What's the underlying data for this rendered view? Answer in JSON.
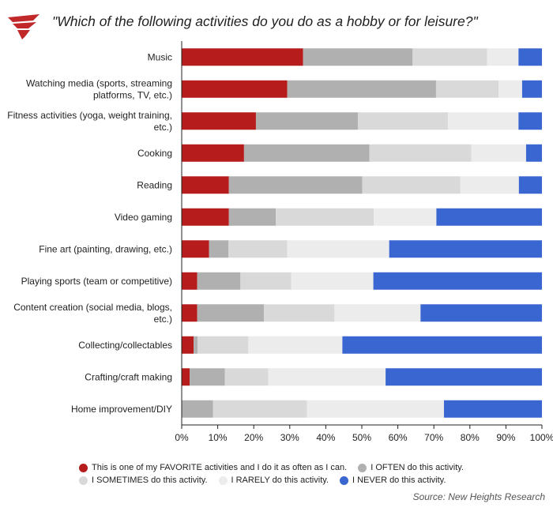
{
  "title": "\"Which of the following activities do you do as a hobby or for leisure?\"",
  "source": "Source: New Heights Research",
  "logo_icon": "red-wing-logo-icon",
  "colors": {
    "favorite": "#b71c1c",
    "often": "#b0b0b0",
    "sometimes": "#d9d9d9",
    "rarely": "#ececec",
    "never": "#3a66d1",
    "axis": "#222222",
    "grid": "#e6e6e6",
    "logo": "#c0282a"
  },
  "legend": [
    {
      "key": "favorite",
      "label": "This is one of my FAVORITE activities and I do it as often as I can."
    },
    {
      "key": "often",
      "label": "I OFTEN do this activity."
    },
    {
      "key": "sometimes",
      "label": "I SOMETIMES do this activity."
    },
    {
      "key": "rarely",
      "label": "I RARELY do this activity."
    },
    {
      "key": "never",
      "label": "I NEVER do this activity."
    }
  ],
  "chart_data": {
    "type": "bar",
    "orientation": "horizontal",
    "stacked": true,
    "title": "\"Which of the following activities do you do as a hobby or for leisure?\"",
    "xlim": [
      0,
      100
    ],
    "x_ticks": [
      "0%",
      "10%",
      "20%",
      "30%",
      "40%",
      "50%",
      "60%",
      "70%",
      "80%",
      "90%",
      "100%"
    ],
    "grid": false,
    "legend_position": "bottom",
    "categories": [
      [
        "Music"
      ],
      [
        "Watching media (sports, streaming",
        "platforms, TV, etc.)"
      ],
      [
        "Fitness activities (yoga, weight training,",
        "etc.)"
      ],
      [
        "Cooking"
      ],
      [
        "Reading"
      ],
      [
        "Video gaming"
      ],
      [
        "Fine art (painting, drawing, etc.)"
      ],
      [
        "Playing sports (team or competitive)"
      ],
      [
        "Content creation (social media, blogs,",
        "etc.)"
      ],
      [
        "Collecting/collectables"
      ],
      [
        "Crafting/craft making"
      ],
      [
        "Home improvement/DIY"
      ]
    ],
    "series": [
      {
        "name": "This is one of my FAVORITE activities and I do it as often as I can.",
        "key": "favorite",
        "values": [
          33.7,
          29.3,
          20.6,
          17.3,
          13.1,
          13.1,
          7.6,
          4.3,
          4.3,
          3.3,
          2.2,
          0
        ]
      },
      {
        "name": "I OFTEN do this activity.",
        "key": "often",
        "values": [
          30.4,
          41.3,
          28.3,
          34.8,
          37.0,
          13.0,
          5.4,
          12.0,
          18.5,
          1.1,
          9.8,
          8.7
        ]
      },
      {
        "name": "I SOMETIMES do this activity.",
        "key": "sometimes",
        "values": [
          20.7,
          17.4,
          25.0,
          28.3,
          27.2,
          27.2,
          16.3,
          14.1,
          19.6,
          14.1,
          12.0,
          26.1
        ]
      },
      {
        "name": "I RARELY do this activity.",
        "key": "rarely",
        "values": [
          8.7,
          6.5,
          19.6,
          15.2,
          16.3,
          17.4,
          28.3,
          22.8,
          23.9,
          26.1,
          32.6,
          38.0
        ]
      },
      {
        "name": "I NEVER do this activity.",
        "key": "never",
        "values": [
          6.5,
          5.5,
          6.5,
          4.4,
          6.4,
          29.3,
          42.4,
          46.8,
          33.7,
          55.4,
          43.4,
          27.2
        ]
      }
    ]
  }
}
